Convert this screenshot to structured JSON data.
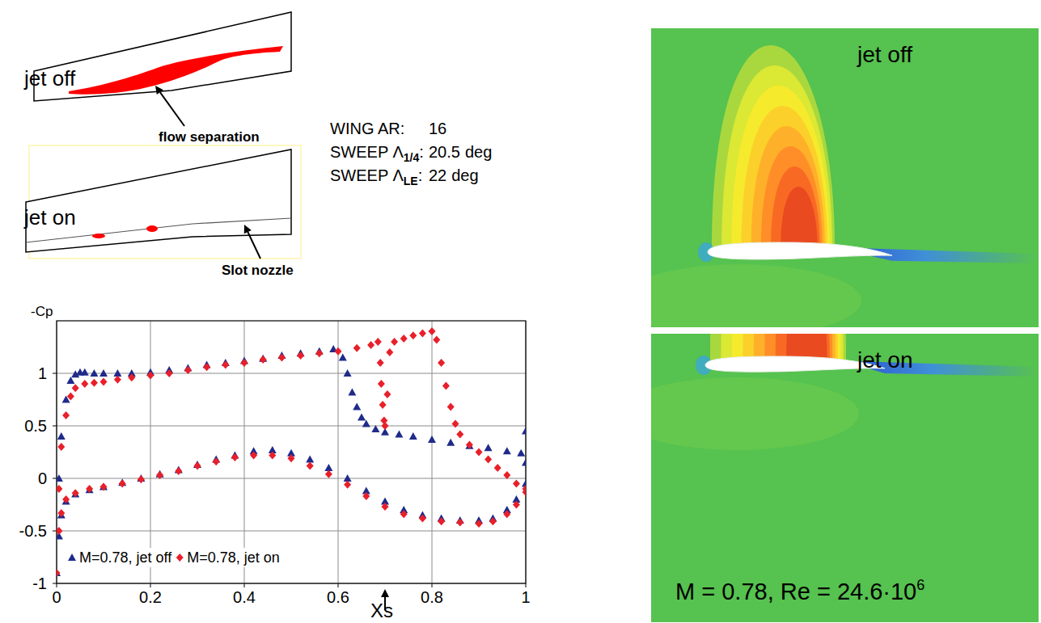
{
  "chart_data": {
    "type": "scatter",
    "y_label": "-Cp",
    "xlim": [
      0,
      1
    ],
    "ylim": [
      -1,
      1.5
    ],
    "xticks": [
      0,
      0.2,
      0.4,
      0.6,
      0.8,
      1
    ],
    "yticks": [
      -1,
      -0.5,
      0,
      0.5,
      1
    ],
    "grid": true,
    "legend": "bottom-left",
    "annotations": [
      {
        "text": "Xs",
        "x": 0.7
      }
    ],
    "series": [
      {
        "name": "M=0.78, jet off",
        "color": "#1f2a8a",
        "marker": "triangle",
        "x": [
          0,
          0.005,
          0.01,
          0.02,
          0.03,
          0.04,
          0.05,
          0.06,
          0.08,
          0.1,
          0.13,
          0.16,
          0.2,
          0.24,
          0.28,
          0.32,
          0.36,
          0.4,
          0.44,
          0.48,
          0.52,
          0.56,
          0.59,
          0.61,
          0.62,
          0.63,
          0.64,
          0.65,
          0.66,
          0.68,
          0.7,
          0.73,
          0.76,
          0.8,
          0.84,
          0.88,
          0.92,
          0.96,
          0.99,
          1,
          1,
          0.005,
          0.01,
          0.02,
          0.04,
          0.07,
          0.1,
          0.14,
          0.18,
          0.22,
          0.26,
          0.3,
          0.34,
          0.38,
          0.42,
          0.46,
          0.5,
          0.54,
          0.58,
          0.62,
          0.66,
          0.7,
          0.74,
          0.78,
          0.82,
          0.86,
          0.9,
          0.93,
          0.96,
          0.98,
          1
        ],
        "values": [
          -0.9,
          0.0,
          0.4,
          0.75,
          0.93,
          0.99,
          1.01,
          1.01,
          1.0,
          1.0,
          1.0,
          1.0,
          1.01,
          1.03,
          1.05,
          1.08,
          1.1,
          1.12,
          1.14,
          1.17,
          1.19,
          1.21,
          1.23,
          1.15,
          1.0,
          0.82,
          0.68,
          0.58,
          0.52,
          0.47,
          0.44,
          0.42,
          0.4,
          0.37,
          0.34,
          0.31,
          0.29,
          0.26,
          0.24,
          0.45,
          0.15,
          -0.55,
          -0.35,
          -0.22,
          -0.15,
          -0.11,
          -0.08,
          -0.04,
          0.0,
          0.04,
          0.08,
          0.13,
          0.18,
          0.22,
          0.26,
          0.27,
          0.24,
          0.18,
          0.1,
          0.0,
          -0.12,
          -0.22,
          -0.3,
          -0.35,
          -0.38,
          -0.4,
          -0.4,
          -0.38,
          -0.3,
          -0.2,
          -0.05
        ]
      },
      {
        "name": "M=0.78, jet on",
        "color": "#e8202a",
        "marker": "diamond",
        "x": [
          0,
          0.005,
          0.01,
          0.02,
          0.03,
          0.04,
          0.06,
          0.08,
          0.1,
          0.13,
          0.16,
          0.2,
          0.24,
          0.28,
          0.32,
          0.36,
          0.4,
          0.44,
          0.48,
          0.52,
          0.56,
          0.6,
          0.64,
          0.67,
          0.685,
          0.69,
          0.692,
          0.695,
          0.698,
          0.7,
          0.705,
          0.71,
          0.72,
          0.74,
          0.76,
          0.78,
          0.8,
          0.81,
          0.82,
          0.83,
          0.84,
          0.85,
          0.86,
          0.88,
          0.9,
          0.92,
          0.94,
          0.96,
          0.98,
          1,
          0.005,
          0.01,
          0.02,
          0.04,
          0.07,
          0.1,
          0.14,
          0.18,
          0.22,
          0.26,
          0.3,
          0.34,
          0.38,
          0.42,
          0.46,
          0.5,
          0.54,
          0.58,
          0.62,
          0.66,
          0.7,
          0.74,
          0.78,
          0.82,
          0.86,
          0.9,
          0.93,
          0.96,
          0.98,
          1
        ],
        "values": [
          -0.9,
          -0.1,
          0.3,
          0.6,
          0.78,
          0.86,
          0.9,
          0.91,
          0.92,
          0.94,
          0.96,
          0.98,
          1.0,
          1.03,
          1.06,
          1.08,
          1.1,
          1.13,
          1.15,
          1.17,
          1.19,
          1.21,
          1.24,
          1.27,
          1.3,
          1.1,
          0.9,
          0.7,
          0.55,
          0.5,
          0.8,
          1.2,
          1.3,
          1.33,
          1.36,
          1.38,
          1.4,
          1.32,
          1.1,
          0.88,
          0.68,
          0.52,
          0.42,
          0.32,
          0.25,
          0.18,
          0.1,
          0.03,
          -0.05,
          -0.1,
          -0.5,
          -0.33,
          -0.2,
          -0.14,
          -0.1,
          -0.08,
          -0.05,
          -0.01,
          0.03,
          0.07,
          0.12,
          0.16,
          0.2,
          0.22,
          0.22,
          0.19,
          0.12,
          0.04,
          -0.06,
          -0.17,
          -0.27,
          -0.34,
          -0.38,
          -0.41,
          -0.42,
          -0.43,
          -0.41,
          -0.34,
          -0.25,
          -0.13
        ]
      }
    ]
  },
  "planforms": [
    {
      "label": "jet off",
      "annotation": "flow separation"
    },
    {
      "label": "jet on",
      "annotation": "Slot nozzle"
    }
  ],
  "wing_parameters": [
    {
      "prefix": "WING AR:",
      "value": 16
    },
    {
      "prefix": "SWEEP Λ",
      "subscript": "1/4",
      "suffix": ":",
      "value": 20.5,
      "unit": "deg"
    },
    {
      "prefix": "SWEEP Λ",
      "subscript": "LE",
      "suffix": ":",
      "value": 22,
      "unit": "deg"
    }
  ],
  "contour_panels": [
    {
      "label": "jet off"
    },
    {
      "label": "jet on"
    }
  ],
  "conditions": {
    "text": "M = 0.78, Re = 24.6·10",
    "superscript": "6"
  }
}
